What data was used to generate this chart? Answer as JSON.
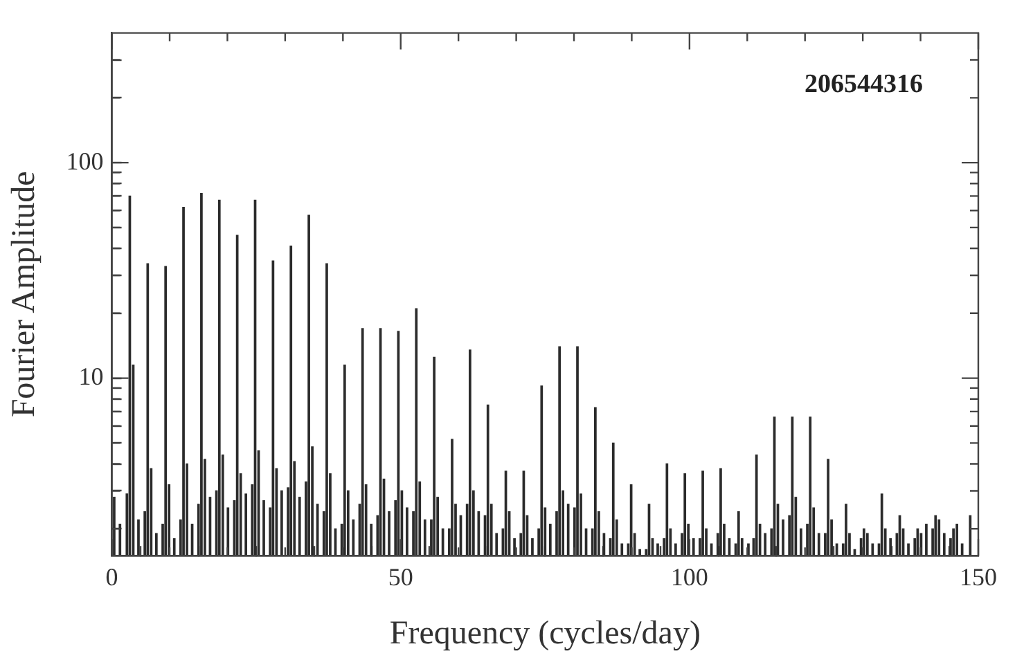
{
  "chart_data": {
    "type": "bar",
    "xlabel": "Frequency (cycles/day)",
    "ylabel": "Fourier Amplitude",
    "annotations": [
      "206544316"
    ],
    "color": "#2b2b2b",
    "log": "y",
    "grid": false,
    "legend": false,
    "x": [
      0.4,
      1.4,
      2.6,
      3.1,
      3.7,
      4.6,
      5.7,
      6.2,
      6.8,
      7.7,
      8.8,
      9.3,
      9.9,
      10.8,
      11.9,
      12.4,
      13.0,
      13.9,
      15.0,
      15.5,
      16.1,
      17.0,
      18.1,
      18.6,
      19.2,
      20.1,
      21.2,
      21.7,
      22.3,
      23.2,
      24.3,
      24.8,
      25.4,
      26.3,
      27.4,
      27.9,
      28.5,
      29.4,
      30.5,
      31.0,
      31.6,
      32.5,
      33.6,
      34.1,
      34.7,
      35.6,
      36.7,
      37.2,
      37.8,
      38.7,
      39.8,
      40.3,
      40.9,
      41.8,
      42.9,
      43.4,
      44.0,
      44.9,
      46.0,
      46.5,
      47.1,
      48.0,
      49.1,
      49.6,
      50.2,
      51.1,
      52.2,
      52.7,
      53.3,
      54.2,
      55.3,
      55.8,
      56.4,
      57.3,
      58.4,
      58.9,
      59.5,
      60.4,
      61.5,
      62.0,
      62.6,
      63.5,
      64.6,
      65.1,
      65.7,
      66.6,
      67.7,
      68.2,
      68.8,
      69.7,
      70.8,
      71.3,
      71.9,
      72.8,
      73.9,
      74.4,
      75.0,
      75.9,
      77.0,
      77.5,
      78.1,
      79.0,
      80.1,
      80.6,
      81.2,
      82.1,
      83.2,
      83.7,
      84.3,
      85.2,
      86.3,
      86.8,
      87.4,
      88.3,
      89.4,
      89.9,
      90.5,
      91.4,
      92.5,
      93.0,
      93.6,
      94.5,
      95.6,
      96.1,
      96.7,
      97.6,
      98.7,
      99.2,
      99.8,
      100.7,
      101.8,
      102.3,
      102.9,
      103.8,
      104.9,
      105.4,
      106.0,
      106.9,
      108.0,
      108.5,
      109.1,
      110.2,
      111.1,
      111.6,
      112.2,
      113.1,
      114.2,
      114.7,
      115.3,
      116.2,
      117.3,
      117.8,
      118.4,
      119.3,
      120.4,
      120.9,
      121.5,
      122.4,
      123.5,
      124.0,
      124.6,
      125.5,
      126.6,
      127.1,
      127.7,
      128.6,
      129.7,
      130.2,
      130.8,
      131.7,
      132.8,
      133.3,
      133.9,
      134.8,
      135.9,
      136.4,
      137.0,
      137.9,
      139.0,
      139.5,
      140.1,
      141.0,
      142.1,
      142.6,
      143.2,
      144.1,
      145.2,
      145.7,
      146.3,
      147.2,
      148.6
    ],
    "values": [
      2.8,
      2.1,
      2.9,
      70,
      11.5,
      2.2,
      2.4,
      34,
      3.8,
      1.9,
      2.1,
      33,
      3.2,
      1.8,
      2.2,
      62,
      4.0,
      2.1,
      2.6,
      72,
      4.2,
      2.8,
      3.0,
      67,
      4.4,
      2.5,
      2.7,
      46,
      3.6,
      2.9,
      3.2,
      67,
      4.6,
      2.7,
      2.5,
      35,
      3.8,
      3.0,
      3.1,
      41,
      4.1,
      2.8,
      3.3,
      57,
      4.8,
      2.6,
      2.4,
      34,
      3.6,
      2.0,
      2.1,
      11.5,
      3.0,
      2.2,
      2.6,
      17,
      3.2,
      2.1,
      2.3,
      17,
      3.4,
      2.4,
      2.7,
      16.5,
      3.0,
      2.5,
      2.4,
      21,
      3.3,
      2.2,
      2.2,
      12.5,
      2.8,
      2.0,
      2.0,
      5.2,
      2.6,
      2.3,
      2.6,
      13.5,
      3.0,
      2.4,
      2.3,
      7.5,
      2.6,
      1.9,
      2.0,
      3.7,
      2.4,
      1.8,
      1.9,
      3.7,
      2.3,
      1.8,
      2.0,
      9.2,
      2.5,
      2.1,
      2.4,
      14,
      3.0,
      2.6,
      2.5,
      14,
      2.9,
      2.0,
      2.0,
      7.3,
      2.4,
      1.9,
      1.8,
      5.0,
      2.2,
      1.7,
      1.7,
      3.2,
      1.9,
      1.6,
      1.6,
      2.6,
      1.8,
      1.7,
      1.8,
      4.0,
      2.0,
      1.7,
      1.9,
      3.6,
      2.1,
      1.8,
      1.8,
      3.7,
      2.0,
      1.7,
      1.9,
      3.8,
      2.1,
      1.8,
      1.7,
      2.4,
      1.8,
      1.7,
      1.8,
      4.4,
      2.1,
      1.9,
      2.0,
      6.6,
      2.6,
      2.2,
      2.3,
      6.6,
      2.8,
      2.0,
      2.1,
      6.6,
      2.5,
      1.9,
      1.9,
      4.2,
      2.2,
      1.7,
      1.7,
      2.6,
      1.9,
      1.6,
      1.8,
      2.0,
      1.9,
      1.7,
      1.7,
      2.9,
      2.0,
      1.8,
      1.9,
      2.3,
      2.0,
      1.7,
      1.8,
      2.0,
      1.9,
      2.1,
      2.0,
      2.3,
      2.2,
      1.9,
      1.8,
      2.0,
      2.1,
      1.7,
      2.3
    ],
    "xlim": [
      0,
      150
    ],
    "xticks": [
      0,
      {
        "value": 10,
        "label": null
      },
      {
        "value": 20,
        "label": null
      },
      {
        "value": 30,
        "label": null
      },
      {
        "value": 40,
        "label": null
      },
      50,
      {
        "value": 60,
        "label": null
      },
      {
        "value": 70,
        "label": null
      },
      {
        "value": 80,
        "label": null
      },
      {
        "value": 90,
        "label": null
      },
      100,
      {
        "value": 110,
        "label": null
      },
      {
        "value": 120,
        "label": null
      },
      {
        "value": 130,
        "label": null
      },
      {
        "value": 140,
        "label": null
      },
      150
    ],
    "ylim": [
      1.5,
      400
    ],
    "yticks": [
      {
        "value": 2,
        "label": null
      },
      {
        "value": 3,
        "label": null
      },
      {
        "value": 4,
        "label": null
      },
      {
        "value": 5,
        "label": null
      },
      {
        "value": 6,
        "label": null
      },
      {
        "value": 7,
        "label": null
      },
      {
        "value": 8,
        "label": null
      },
      {
        "value": 9,
        "label": null
      },
      10,
      {
        "value": 20,
        "label": null
      },
      {
        "value": 30,
        "label": null
      },
      {
        "value": 40,
        "label": null
      },
      {
        "value": 50,
        "label": null
      },
      {
        "value": 60,
        "label": null
      },
      {
        "value": 70,
        "label": null
      },
      {
        "value": 80,
        "label": null
      },
      {
        "value": 90,
        "label": null
      },
      100,
      {
        "value": 200,
        "label": null
      },
      {
        "value": 300,
        "label": null
      }
    ]
  }
}
